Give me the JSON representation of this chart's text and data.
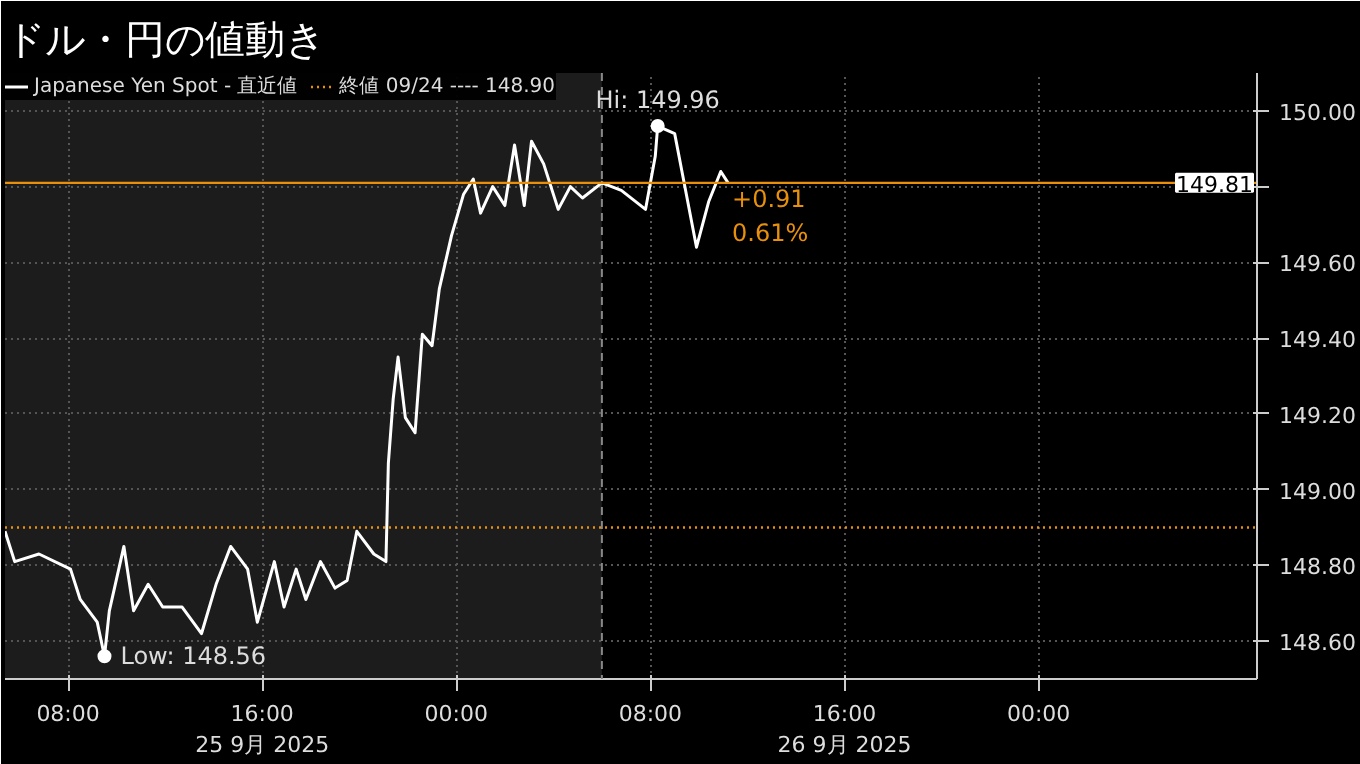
{
  "chart_data": {
    "type": "line",
    "title": "ドル・円の値動き",
    "x": [
      "2025-09-25T05:24",
      "2025-09-25T05:48",
      "2025-09-25T06:48",
      "2025-09-25T08:06",
      "2025-09-25T08:30",
      "2025-09-25T09:12",
      "2025-09-25T09:30",
      "2025-09-25T09:42",
      "2025-09-25T10:18",
      "2025-09-25T10:42",
      "2025-09-25T11:18",
      "2025-09-25T11:54",
      "2025-09-25T12:42",
      "2025-09-25T13:30",
      "2025-09-25T14:06",
      "2025-09-25T14:42",
      "2025-09-25T15:24",
      "2025-09-25T15:48",
      "2025-09-25T16:30",
      "2025-09-25T16:54",
      "2025-09-25T17:24",
      "2025-09-25T17:48",
      "2025-09-25T18:24",
      "2025-09-25T19:00",
      "2025-09-25T19:30",
      "2025-09-25T19:54",
      "2025-09-25T20:36",
      "2025-09-25T21:06",
      "2025-09-25T21:12",
      "2025-09-25T21:24",
      "2025-09-25T21:36",
      "2025-09-25T21:54",
      "2025-09-25T22:18",
      "2025-09-25T22:36",
      "2025-09-25T23:00",
      "2025-09-25T23:18",
      "2025-09-25T23:48",
      "2025-09-26T00:18",
      "2025-09-26T00:42",
      "2025-09-26T01:00",
      "2025-09-26T01:30",
      "2025-09-26T02:00",
      "2025-09-26T02:24",
      "2025-09-26T02:48",
      "2025-09-26T03:06",
      "2025-09-26T03:36",
      "2025-09-26T04:12",
      "2025-09-26T04:42",
      "2025-09-26T05:12",
      "2025-09-26T06:00",
      "2025-09-26T06:48",
      "2025-09-26T07:48",
      "2025-09-26T08:12",
      "2025-09-26T08:18",
      "2025-09-26T09:00",
      "2025-09-26T09:18",
      "2025-09-26T09:54",
      "2025-09-26T10:24",
      "2025-09-26T10:54",
      "2025-09-26T11:12"
    ],
    "series": [
      {
        "name": "Japanese Yen Spot - 直近値",
        "color": "#ffffff",
        "values": [
          148.89,
          148.81,
          148.83,
          148.79,
          148.71,
          148.65,
          148.56,
          148.68,
          148.85,
          148.68,
          148.75,
          148.69,
          148.69,
          148.62,
          148.75,
          148.85,
          148.79,
          148.65,
          148.81,
          148.69,
          148.79,
          148.71,
          148.81,
          148.74,
          148.76,
          148.89,
          148.83,
          148.81,
          149.07,
          149.24,
          149.35,
          149.19,
          149.15,
          149.41,
          149.38,
          149.53,
          149.67,
          149.78,
          149.82,
          149.73,
          149.8,
          149.75,
          149.91,
          149.75,
          149.92,
          149.86,
          149.74,
          149.8,
          149.77,
          149.81,
          149.79,
          149.74,
          149.88,
          149.96,
          149.94,
          149.84,
          149.64,
          149.76,
          149.84,
          149.81
        ]
      }
    ],
    "xlim": [
      "2025-09-25T05:24",
      "2025-09-27T09:00"
    ],
    "xticks": [
      {
        "value": "2025-09-25T08:00",
        "label": "08:00"
      },
      {
        "value": "2025-09-25T16:00",
        "label": "16:00\n25 9月 2025"
      },
      {
        "value": "2025-09-26T00:00",
        "label": "00:00"
      },
      {
        "value": "2025-09-26T08:00",
        "label": "08:00"
      },
      {
        "value": "2025-09-26T16:00",
        "label": "16:00\n26 9月 2025"
      },
      {
        "value": "2025-09-27T00:00",
        "label": "00:00"
      }
    ],
    "ylim": [
      148.5,
      150.1
    ],
    "yticks": [
      {
        "value": 148.6,
        "label": "148.60"
      },
      {
        "value": 148.8,
        "label": "148.80"
      },
      {
        "value": 149.0,
        "label": "149.00"
      },
      {
        "value": 149.2,
        "label": "149.20"
      },
      {
        "value": 149.4,
        "label": "149.40"
      },
      {
        "value": 149.6,
        "label": "149.60"
      },
      {
        "value": 149.8,
        "label": null
      },
      {
        "value": 150.0,
        "label": "150.00"
      }
    ],
    "ref_lines": [
      {
        "axis": "y",
        "value": 148.9,
        "label": "終値 09/24 ---- 148.90",
        "color": "#e8900c",
        "line_style": "dotted"
      },
      {
        "axis": "y",
        "value": 149.81,
        "label": "149.81",
        "color": "#e8900c",
        "line_style": "solid"
      },
      {
        "axis": "x",
        "value": "2025-09-26T06:00",
        "color": "#888888",
        "line_style": "dashed"
      }
    ],
    "bands": [
      {
        "axis": "x",
        "from": "2025-09-25T05:24",
        "to": "2025-09-26T06:00",
        "color": "#1c1c1c"
      }
    ],
    "annotations": [
      {
        "text": "Hi: 149.96",
        "x": "2025-09-26T08:18",
        "y": 149.96
      },
      {
        "text": "Low: 148.56",
        "x": "2025-09-25T09:30",
        "y": 148.56
      },
      "+0.91",
      "0.61%"
    ],
    "grid": true,
    "legend": "top left",
    "line_style": "solid"
  }
}
